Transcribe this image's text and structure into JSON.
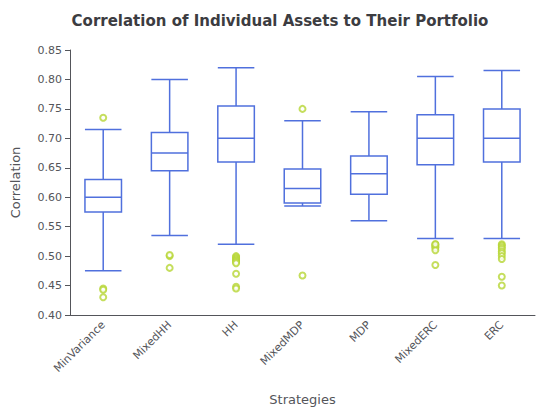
{
  "chart_data": {
    "type": "box",
    "title": "Correlation of Individual Assets to Their Portfolio",
    "xlabel": "Strategies",
    "ylabel": "Correlation",
    "categories": [
      "MinVariance",
      "MixedHH",
      "HH",
      "MixedMDP",
      "MDP",
      "MixedERC",
      "ERC"
    ],
    "boxes": [
      {
        "whislo": 0.475,
        "q1": 0.575,
        "median": 0.6,
        "q3": 0.63,
        "whishi": 0.715,
        "fliers": [
          0.735,
          0.445,
          0.443,
          0.43
        ]
      },
      {
        "whislo": 0.535,
        "q1": 0.645,
        "median": 0.675,
        "q3": 0.71,
        "whishi": 0.8,
        "fliers": [
          0.5,
          0.502,
          0.48
        ]
      },
      {
        "whislo": 0.52,
        "q1": 0.66,
        "median": 0.7,
        "q3": 0.755,
        "whishi": 0.82,
        "fliers": [
          0.5,
          0.498,
          0.496,
          0.494,
          0.492,
          0.49,
          0.488,
          0.47,
          0.448,
          0.445
        ]
      },
      {
        "whislo": 0.585,
        "q1": 0.59,
        "median": 0.615,
        "q3": 0.648,
        "whishi": 0.73,
        "fliers": [
          0.75,
          0.467
        ]
      },
      {
        "whislo": 0.56,
        "q1": 0.605,
        "median": 0.64,
        "q3": 0.67,
        "whishi": 0.745,
        "fliers": []
      },
      {
        "whislo": 0.53,
        "q1": 0.655,
        "median": 0.7,
        "q3": 0.74,
        "whishi": 0.805,
        "fliers": [
          0.52,
          0.518,
          0.516,
          0.514,
          0.51,
          0.485,
          0.52
        ]
      },
      {
        "whislo": 0.53,
        "q1": 0.66,
        "median": 0.7,
        "q3": 0.75,
        "whishi": 0.815,
        "fliers": [
          0.52,
          0.518,
          0.515,
          0.512,
          0.508,
          0.505,
          0.5,
          0.495,
          0.465,
          0.45
        ]
      }
    ],
    "ylim": [
      0.4,
      0.85
    ],
    "yticks": [
      {
        "value": 0.4,
        "label": "0.40"
      },
      {
        "value": 0.45,
        "label": "0.45"
      },
      {
        "value": 0.5,
        "label": "0.50"
      },
      {
        "value": 0.55,
        "label": "0.55"
      },
      {
        "value": 0.6,
        "label": "0.60"
      },
      {
        "value": 0.65,
        "label": "0.65"
      },
      {
        "value": 0.7,
        "label": "0.70"
      },
      {
        "value": 0.75,
        "label": "0.75"
      },
      {
        "value": 0.8,
        "label": "0.80"
      },
      {
        "value": 0.85,
        "label": "0.85"
      }
    ],
    "grid": false
  }
}
